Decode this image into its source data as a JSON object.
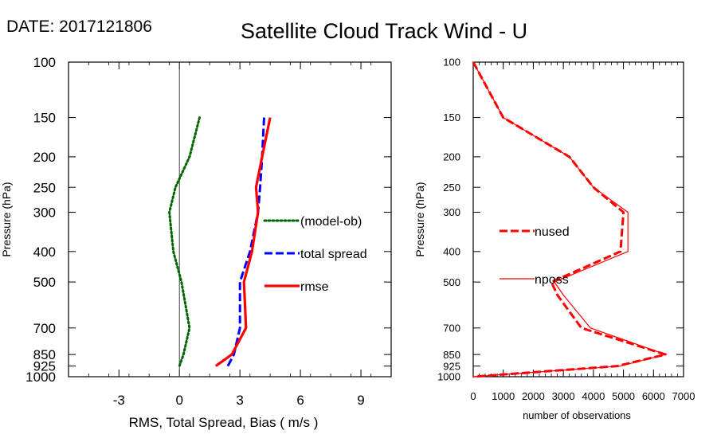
{
  "header": {
    "date_text": "DATE: 2017121806",
    "title": "Satellite Cloud Track Wind - U"
  },
  "chart_data": [
    {
      "type": "line",
      "xlabel": "RMS, Total Spread, Bias ( m/s )",
      "ylabel": "Pressure (hPa)",
      "xlim": [
        -5.5,
        10.5
      ],
      "ylim": [
        1000,
        100
      ],
      "y_scale": "log",
      "x_ticks": [
        -3,
        0,
        3,
        6,
        9
      ],
      "y_ticks": [
        100,
        150,
        200,
        250,
        300,
        400,
        500,
        700,
        850,
        925,
        1000
      ],
      "zero_line": 0,
      "legend_position": "right",
      "series": [
        {
          "name": "(model-ob)",
          "color": "#006400",
          "dash": "dotted",
          "points": [
            [
              1.0,
              150
            ],
            [
              0.5,
              200
            ],
            [
              -0.2,
              250
            ],
            [
              -0.5,
              300
            ],
            [
              -0.3,
              400
            ],
            [
              0.1,
              500
            ],
            [
              0.5,
              700
            ],
            [
              0.2,
              850
            ],
            [
              0.0,
              925
            ]
          ]
        },
        {
          "name": "total spread",
          "color": "#0000ff",
          "dash": "dashed",
          "points": [
            [
              4.2,
              150
            ],
            [
              4.1,
              200
            ],
            [
              4.0,
              250
            ],
            [
              3.9,
              300
            ],
            [
              3.5,
              400
            ],
            [
              3.0,
              500
            ],
            [
              3.0,
              700
            ],
            [
              2.7,
              850
            ],
            [
              2.4,
              925
            ]
          ]
        },
        {
          "name": "rmse",
          "color": "#ff0000",
          "dash": "solid",
          "points": [
            [
              4.5,
              150
            ],
            [
              4.1,
              200
            ],
            [
              3.8,
              250
            ],
            [
              3.9,
              300
            ],
            [
              3.6,
              400
            ],
            [
              3.2,
              500
            ],
            [
              3.3,
              700
            ],
            [
              2.6,
              850
            ],
            [
              1.8,
              925
            ]
          ]
        }
      ]
    },
    {
      "type": "line",
      "xlabel": "number of observations",
      "ylabel": "Pressure (hPa)",
      "xlim": [
        0,
        7000
      ],
      "ylim": [
        1000,
        100
      ],
      "y_scale": "log",
      "x_ticks": [
        0,
        1000,
        2000,
        3000,
        4000,
        5000,
        6000,
        7000
      ],
      "y_ticks": [
        100,
        150,
        200,
        250,
        300,
        400,
        500,
        700,
        850,
        925,
        1000
      ],
      "legend_position": "left",
      "series": [
        {
          "name": "nused",
          "color": "#ff0000",
          "dash": "dashed",
          "points": [
            [
              0,
              100
            ],
            [
              1000,
              150
            ],
            [
              3200,
              200
            ],
            [
              4000,
              250
            ],
            [
              5000,
              300
            ],
            [
              4900,
              400
            ],
            [
              2600,
              500
            ],
            [
              2800,
              550
            ],
            [
              3600,
              700
            ],
            [
              6400,
              850
            ],
            [
              4800,
              925
            ],
            [
              0,
              1000
            ]
          ]
        },
        {
          "name": "nposs",
          "color": "#ff0000",
          "dash": "solid-thin",
          "points": [
            [
              0,
              100
            ],
            [
              1000,
              150
            ],
            [
              3200,
              200
            ],
            [
              4000,
              250
            ],
            [
              5150,
              300
            ],
            [
              5150,
              400
            ],
            [
              2700,
              500
            ],
            [
              3000,
              550
            ],
            [
              3900,
              700
            ],
            [
              6400,
              850
            ],
            [
              4900,
              925
            ],
            [
              0,
              1000
            ]
          ]
        }
      ]
    }
  ]
}
